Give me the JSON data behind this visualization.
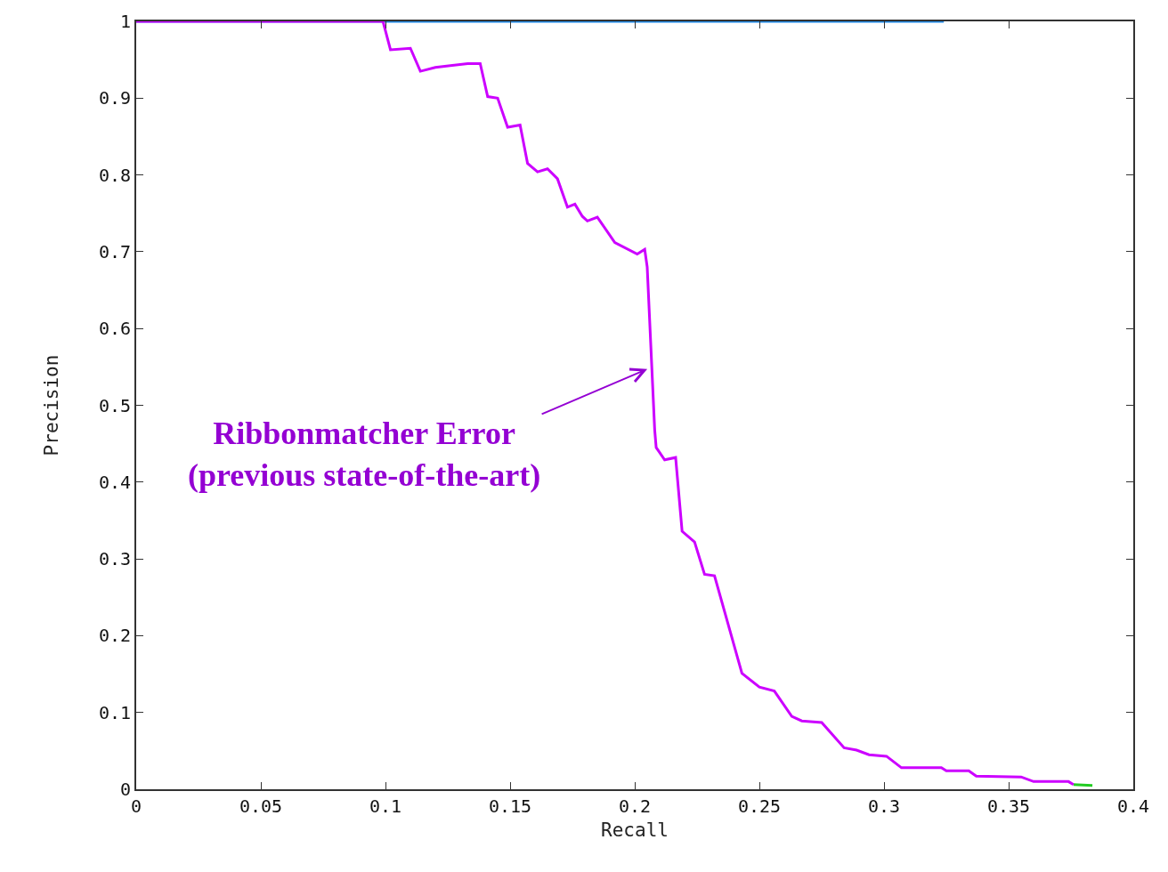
{
  "chart_data": {
    "type": "line",
    "xlabel": "Recall",
    "ylabel": "Precision",
    "xlim": [
      0,
      0.4
    ],
    "xticks": [
      0,
      0.05,
      0.1,
      0.15,
      0.2,
      0.25,
      0.3,
      0.35,
      0.4
    ],
    "ylim": [
      0,
      1
    ],
    "yticks": [
      0,
      0.1,
      0.2,
      0.3,
      0.4,
      0.5,
      0.6,
      0.7,
      0.8,
      0.9,
      1
    ],
    "marker": "none",
    "line_style": "solid",
    "series": [
      {
        "color": "#1e88e5",
        "x": [
          0,
          0.324
        ],
        "values": [
          1,
          1
        ]
      },
      {
        "color": "#22cc22",
        "x": [
          0.376,
          0.3836
        ],
        "values": [
          0.006,
          0.005
        ]
      },
      {
        "color": "#cc00ff",
        "x": [
          0,
          0.099,
          0.102,
          0.11,
          0.114,
          0.12,
          0.133,
          0.138,
          0.141,
          0.145,
          0.149,
          0.154,
          0.157,
          0.161,
          0.165,
          0.169,
          0.173,
          0.176,
          0.179,
          0.181,
          0.185,
          0.192,
          0.201,
          0.204,
          0.205,
          0.208,
          0.2086,
          0.212,
          0.2164,
          0.219,
          0.224,
          0.228,
          0.232,
          0.243,
          0.25,
          0.256,
          0.263,
          0.267,
          0.275,
          0.284,
          0.289,
          0.294,
          0.301,
          0.307,
          0.323,
          0.325,
          0.334,
          0.337,
          0.355,
          0.36,
          0.374,
          0.376
        ],
        "values": [
          1,
          1,
          0.963,
          0.965,
          0.935,
          0.94,
          0.945,
          0.945,
          0.902,
          0.9,
          0.862,
          0.865,
          0.815,
          0.804,
          0.808,
          0.795,
          0.758,
          0.762,
          0.746,
          0.74,
          0.745,
          0.712,
          0.697,
          0.703,
          0.68,
          0.468,
          0.445,
          0.429,
          0.432,
          0.336,
          0.322,
          0.28,
          0.278,
          0.151,
          0.133,
          0.128,
          0.095,
          0.089,
          0.087,
          0.054,
          0.051,
          0.045,
          0.043,
          0.028,
          0.028,
          0.024,
          0.024,
          0.017,
          0.016,
          0.01,
          0.01,
          0.006
        ]
      }
    ],
    "annotations": [
      {
        "text": "Ribbonmatcher Error\n(previous state-of-the-art)",
        "x": 0.207,
        "y": 0.55
      }
    ]
  }
}
